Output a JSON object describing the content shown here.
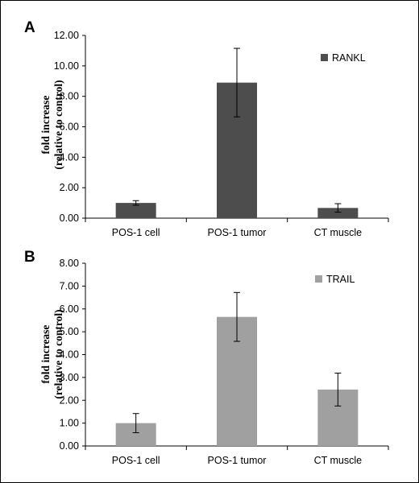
{
  "chart_data": [
    {
      "type": "bar",
      "panel": "A",
      "categories": [
        "POS-1 cell",
        "POS-1 tumor",
        "CT muscle"
      ],
      "series": [
        {
          "name": "RANKL",
          "values": [
            1.0,
            8.9,
            0.67
          ],
          "error": [
            0.15,
            2.25,
            0.28
          ],
          "color": "#4d4d4d"
        }
      ],
      "ylabel": [
        "fold increase",
        "(relative to control)"
      ],
      "ylim": [
        0,
        12
      ],
      "yticks": [
        "0.00",
        "2.00",
        "4.00",
        "6.00",
        "8.00",
        "10.00",
        "12.00"
      ],
      "grid": false,
      "legend": "top-right"
    },
    {
      "type": "bar",
      "panel": "B",
      "categories": [
        "POS-1 cell",
        "POS-1 tumor",
        "CT muscle"
      ],
      "series": [
        {
          "name": "TRAIL",
          "values": [
            1.0,
            5.65,
            2.47
          ],
          "error": [
            0.42,
            1.07,
            0.72
          ],
          "color": "#a0a0a0"
        }
      ],
      "ylabel": [
        "fold increase",
        "(relative to control)"
      ],
      "ylim": [
        0,
        8
      ],
      "yticks": [
        "0.00",
        "1.00",
        "2.00",
        "3.00",
        "4.00",
        "5.00",
        "6.00",
        "7.00",
        "8.00"
      ],
      "grid": false,
      "legend": "top-right"
    }
  ]
}
